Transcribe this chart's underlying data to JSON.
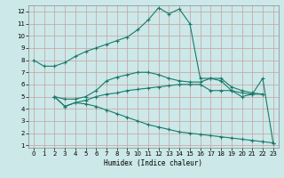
{
  "xlabel": "Humidex (Indice chaleur)",
  "bg_color": "#cce8e8",
  "grid_color": "#c8a0a0",
  "line_color": "#1a7a6a",
  "curve1_x": [
    0,
    1,
    2,
    3,
    4,
    5,
    6,
    7,
    8,
    9,
    10,
    11,
    12,
    13,
    14,
    15,
    16,
    17,
    18,
    19,
    20,
    21,
    22,
    23
  ],
  "curve1_y": [
    8.0,
    7.5,
    7.5,
    7.8,
    8.3,
    8.7,
    9.0,
    9.3,
    9.6,
    9.9,
    10.5,
    11.3,
    12.3,
    11.8,
    12.2,
    11.0,
    6.5,
    6.5,
    6.3,
    5.5,
    5.0,
    5.2,
    6.5,
    1.2
  ],
  "curve2_x": [
    2,
    3,
    4,
    5,
    6,
    7,
    8,
    9,
    10,
    11,
    12,
    13,
    14,
    15,
    16,
    17,
    18,
    19,
    20,
    21,
    22
  ],
  "curve2_y": [
    5.0,
    4.8,
    4.8,
    5.0,
    5.5,
    6.3,
    6.6,
    6.8,
    7.0,
    7.0,
    6.8,
    6.5,
    6.3,
    6.2,
    6.2,
    6.5,
    6.5,
    5.8,
    5.5,
    5.3,
    5.2
  ],
  "curve3_x": [
    2,
    3,
    4,
    5,
    6,
    7,
    8,
    9,
    10,
    11,
    12,
    13,
    14,
    15,
    16,
    17,
    18,
    19,
    20,
    21,
    22
  ],
  "curve3_y": [
    5.0,
    4.2,
    4.5,
    4.7,
    5.0,
    5.2,
    5.3,
    5.5,
    5.6,
    5.7,
    5.8,
    5.9,
    6.0,
    6.0,
    6.0,
    5.5,
    5.5,
    5.5,
    5.3,
    5.2,
    5.2
  ],
  "curve4_x": [
    2,
    3,
    4,
    5,
    6,
    7,
    8,
    9,
    10,
    11,
    12,
    13,
    14,
    15,
    16,
    17,
    18,
    19,
    20,
    21,
    22,
    23
  ],
  "curve4_y": [
    5.0,
    4.2,
    4.5,
    4.4,
    4.2,
    3.9,
    3.6,
    3.3,
    3.0,
    2.7,
    2.5,
    2.3,
    2.1,
    2.0,
    1.9,
    1.8,
    1.7,
    1.6,
    1.5,
    1.4,
    1.3,
    1.2
  ],
  "ylim": [
    0.8,
    12.5
  ],
  "xlim": [
    -0.5,
    23.5
  ],
  "yticks": [
    1,
    2,
    3,
    4,
    5,
    6,
    7,
    8,
    9,
    10,
    11,
    12
  ],
  "xticks": [
    0,
    1,
    2,
    3,
    4,
    5,
    6,
    7,
    8,
    9,
    10,
    11,
    12,
    13,
    14,
    15,
    16,
    17,
    18,
    19,
    20,
    21,
    22,
    23
  ]
}
